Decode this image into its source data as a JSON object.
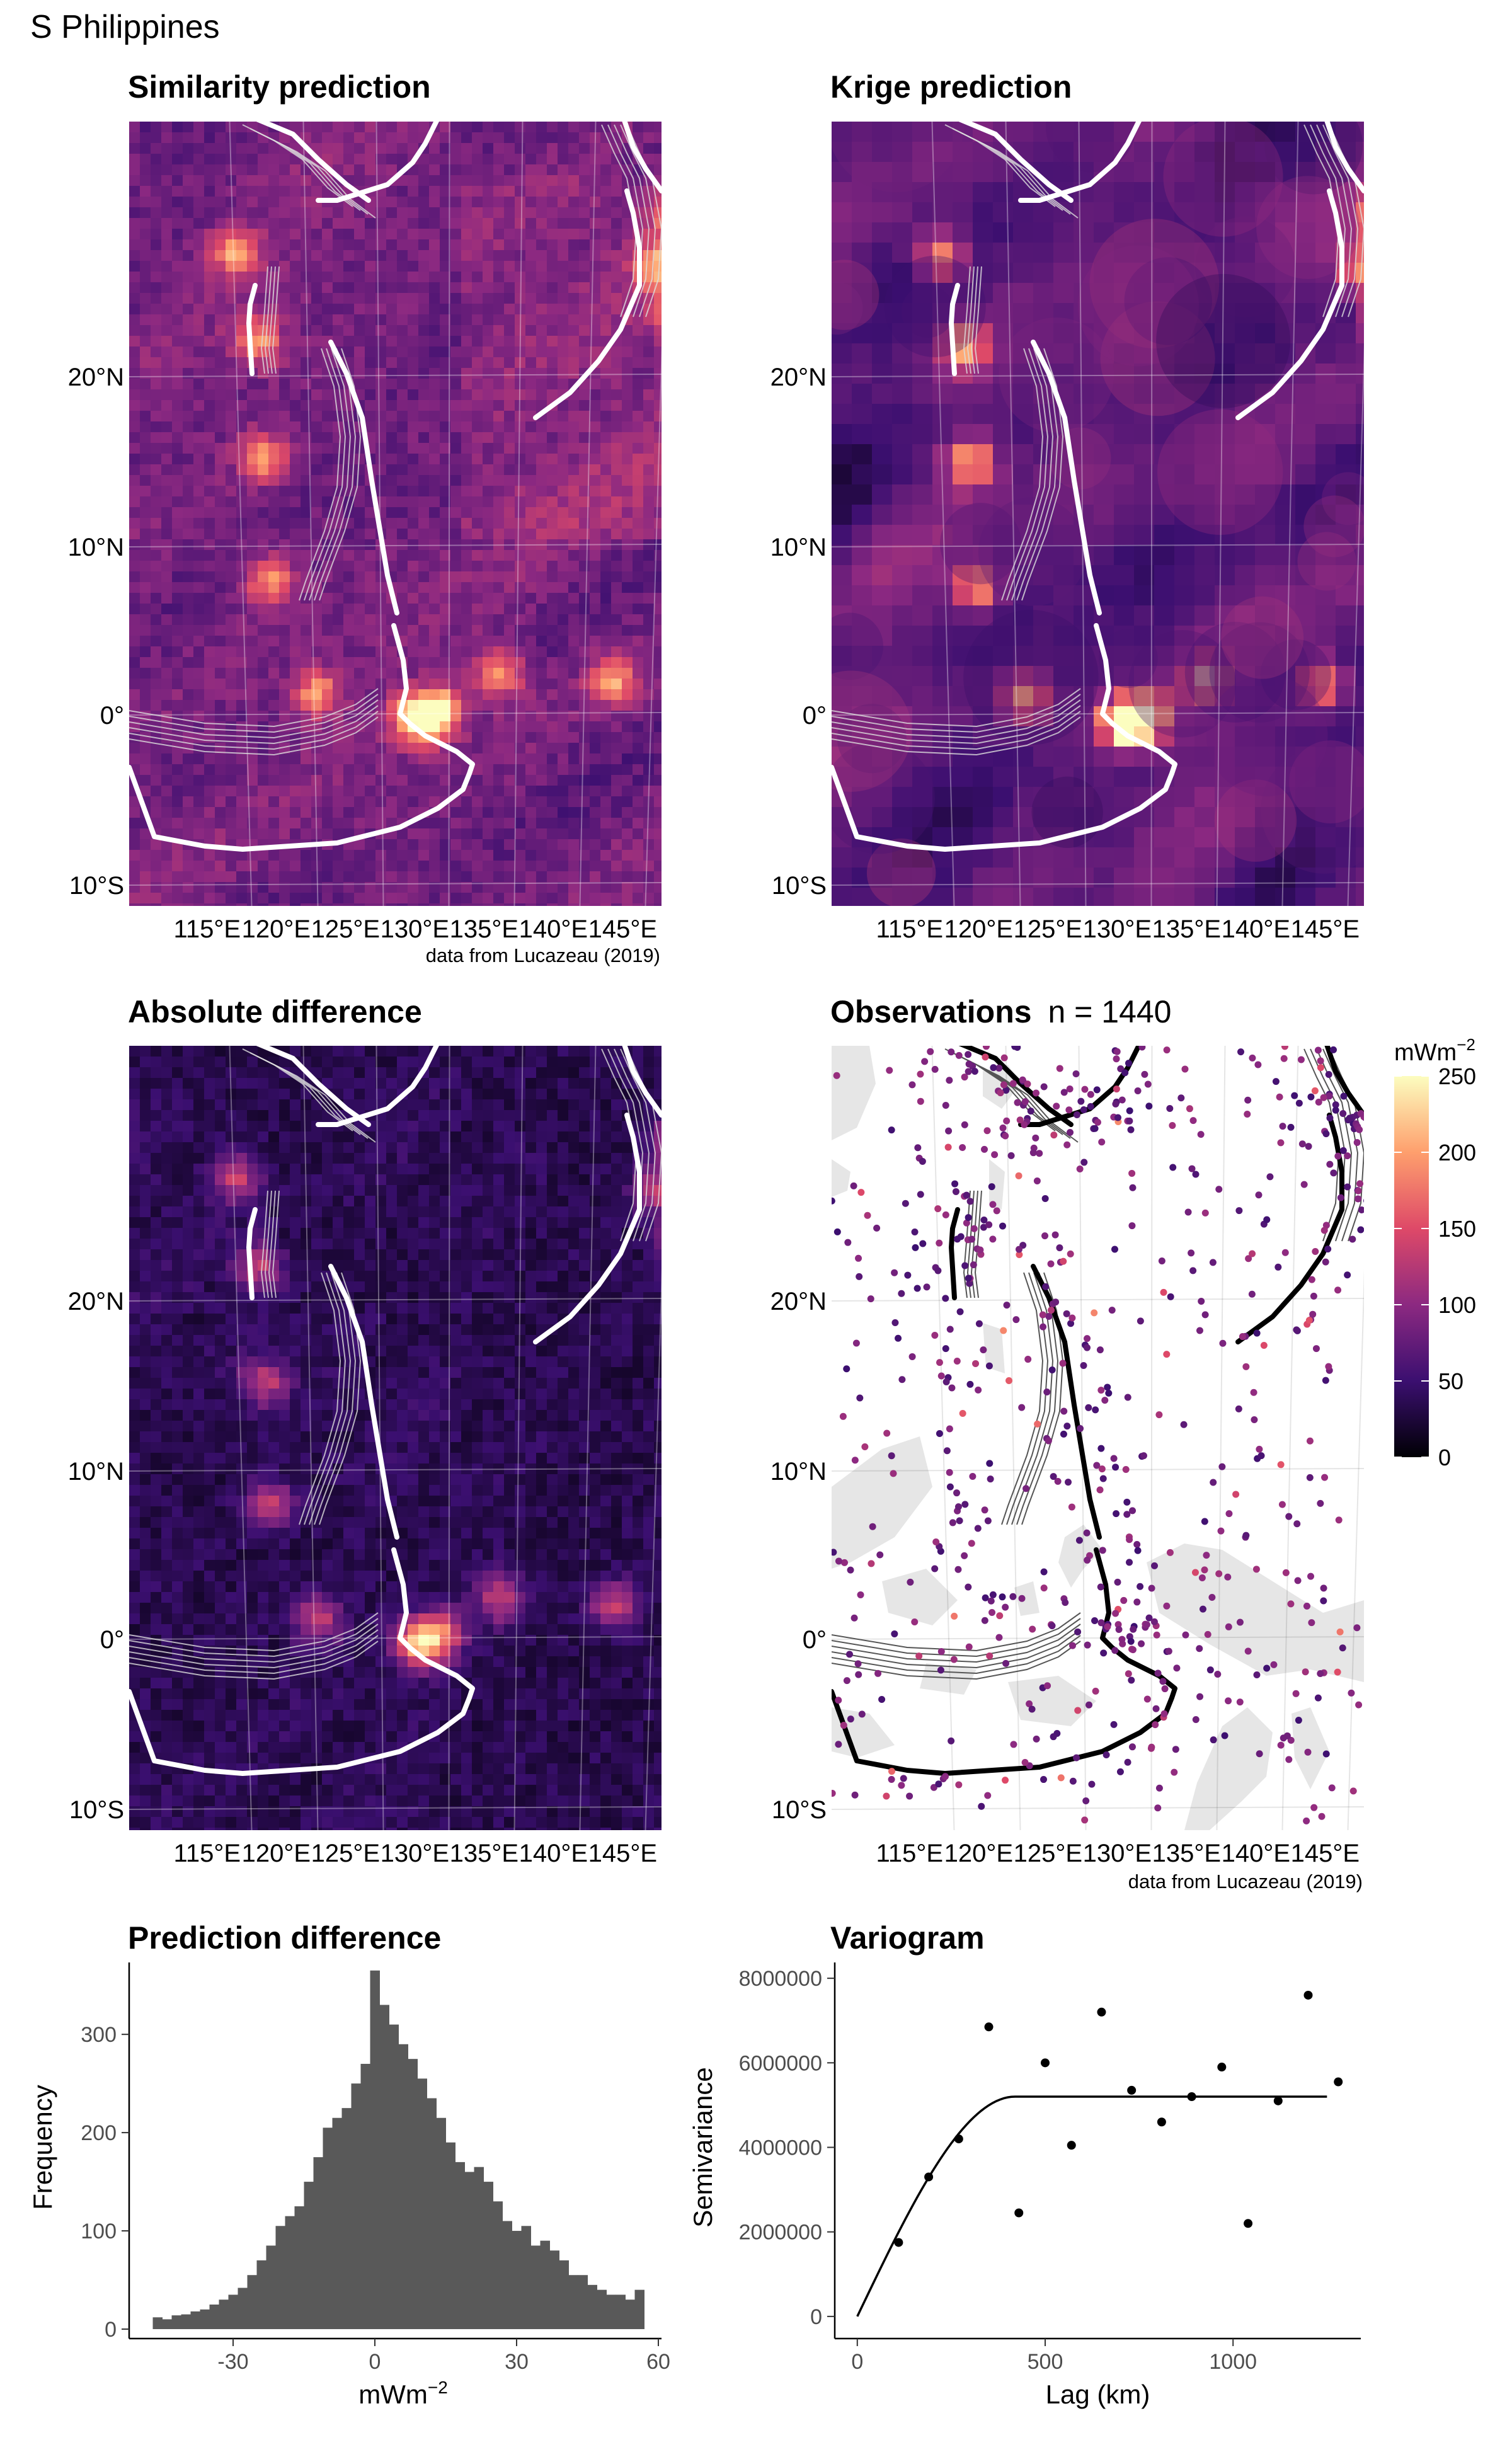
{
  "figure": {
    "title": "S Philippines",
    "credit": "data from Lucazeau (2019)"
  },
  "panels": {
    "similarity": {
      "title": "Similarity prediction"
    },
    "krige": {
      "title": "Krige prediction"
    },
    "absdiff": {
      "title": "Absolute difference"
    },
    "observations": {
      "title": "Observations",
      "count_label": "n = 1440",
      "n": 1440
    }
  },
  "map_axes": {
    "lat_labels": [
      "20°N",
      "10°N",
      "0°",
      "10°S"
    ],
    "lat_values": [
      20,
      10,
      0,
      -10
    ],
    "lon_labels": [
      "115°E",
      "120°E",
      "125°E",
      "130°E",
      "135°E",
      "140°E",
      "145°E"
    ],
    "lon_values": [
      115,
      120,
      125,
      130,
      135,
      140,
      145
    ]
  },
  "legend": {
    "unit": "mWm",
    "unit_exp": "−2",
    "ticks": [
      250,
      200,
      150,
      100,
      50,
      0
    ],
    "colors": [
      "#000004",
      "#3b0f70",
      "#8c2981",
      "#de4968",
      "#fe9f6d",
      "#fcfdbf"
    ]
  },
  "colors": {
    "histogram_bar": "#595959",
    "land": "#e6e6e6",
    "trench_on_raster": "#ffffff",
    "trench_on_observations": "#000000"
  },
  "chart_data": [
    {
      "type": "bar",
      "title": "Prediction difference",
      "xlabel": "mWm",
      "xlabel_exp": "−2",
      "ylabel": "Frequency",
      "xlim": [
        -48,
        60
      ],
      "ylim": [
        0,
        370
      ],
      "x_ticks": [
        -30,
        0,
        30,
        60
      ],
      "y_ticks": [
        0,
        100,
        200,
        300
      ],
      "bin_width": 2,
      "bin_centers": [
        -46,
        -44,
        -42,
        -40,
        -38,
        -36,
        -34,
        -32,
        -30,
        -28,
        -26,
        -24,
        -22,
        -20,
        -18,
        -16,
        -14,
        -12,
        -10,
        -8,
        -6,
        -4,
        -2,
        0,
        2,
        4,
        6,
        8,
        10,
        12,
        14,
        16,
        18,
        20,
        22,
        24,
        26,
        28,
        30,
        32,
        34,
        36,
        38,
        40,
        42,
        44,
        46,
        48,
        50,
        52,
        54,
        56
      ],
      "values": [
        12,
        10,
        14,
        15,
        18,
        20,
        25,
        30,
        35,
        42,
        55,
        70,
        85,
        105,
        115,
        125,
        150,
        175,
        205,
        215,
        225,
        250,
        270,
        365,
        330,
        310,
        290,
        275,
        255,
        235,
        215,
        190,
        170,
        160,
        165,
        150,
        130,
        110,
        100,
        105,
        85,
        90,
        80,
        70,
        55,
        55,
        45,
        40,
        35,
        35,
        30,
        40
      ]
    },
    {
      "type": "scatter",
      "title": "Variogram",
      "xlabel": "Lag (km)",
      "ylabel": "Semivariance",
      "xlim": [
        -60,
        1340
      ],
      "ylim": [
        -300000,
        8300000
      ],
      "x_ticks": [
        0,
        500,
        1000
      ],
      "y_ticks": [
        0,
        2000000,
        4000000,
        6000000,
        8000000
      ],
      "x": [
        110,
        190,
        270,
        350,
        430,
        500,
        570,
        650,
        730,
        810,
        890,
        970,
        1040,
        1120,
        1200,
        1280
      ],
      "y": [
        1750000,
        3300000,
        4200000,
        6850000,
        2450000,
        6000000,
        4050000,
        7200000,
        5350000,
        4600000,
        5200000,
        5900000,
        2200000,
        5100000,
        7600000,
        5550000
      ],
      "model": {
        "type": "spherical",
        "nugget": 0,
        "sill": 5200000,
        "range": 420,
        "x_end": 1250
      }
    }
  ]
}
